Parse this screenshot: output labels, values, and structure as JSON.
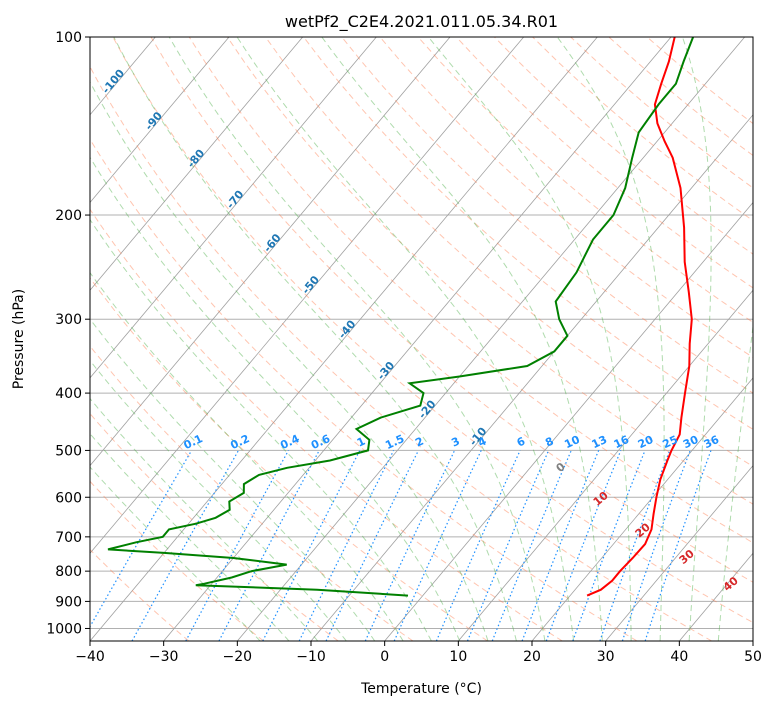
{
  "chart_data": {
    "type": "line",
    "subtype": "skew-t log-p",
    "title": "wetPf2_C2E4.2021.011.05.34.R01",
    "xlabel": "Temperature (°C)",
    "ylabel": "Pressure (hPa)",
    "xlim": [
      -40,
      50
    ],
    "ylim": [
      1050,
      100
    ],
    "y_scale": "log",
    "grid": true,
    "x_ticks": [
      -40,
      -30,
      -20,
      -10,
      0,
      10,
      20,
      30,
      40,
      50
    ],
    "x_tick_labels": [
      "−40",
      "−30",
      "−20",
      "−10",
      "0",
      "10",
      "20",
      "30",
      "40",
      "50"
    ],
    "y_ticks": [
      100,
      200,
      300,
      400,
      500,
      600,
      700,
      800,
      900,
      1000
    ],
    "y_tick_labels": [
      "100",
      "200",
      "300",
      "400",
      "500",
      "600",
      "700",
      "800",
      "900",
      "1000"
    ],
    "series": [
      {
        "color": "#ff0000",
        "points": [
          {
            "p": 880,
            "t": 22.3
          },
          {
            "p": 860,
            "t": 23.5
          },
          {
            "p": 830,
            "t": 24.0
          },
          {
            "p": 800,
            "t": 24.0
          },
          {
            "p": 760,
            "t": 24.2
          },
          {
            "p": 720,
            "t": 24.3
          },
          {
            "p": 680,
            "t": 23.5
          },
          {
            "p": 640,
            "t": 22.0
          },
          {
            "p": 600,
            "t": 20.5
          },
          {
            "p": 560,
            "t": 19.0
          },
          {
            "p": 520,
            "t": 17.8
          },
          {
            "p": 500,
            "t": 17.2
          },
          {
            "p": 470,
            "t": 16.5
          },
          {
            "p": 440,
            "t": 14.8
          },
          {
            "p": 400,
            "t": 12.5
          },
          {
            "p": 360,
            "t": 10.0
          },
          {
            "p": 330,
            "t": 7.5
          },
          {
            "p": 300,
            "t": 5.0
          },
          {
            "p": 270,
            "t": 1.5
          },
          {
            "p": 240,
            "t": -2.5
          },
          {
            "p": 210,
            "t": -6.5
          },
          {
            "p": 180,
            "t": -11.5
          },
          {
            "p": 160,
            "t": -16.0
          },
          {
            "p": 150,
            "t": -19.0
          },
          {
            "p": 140,
            "t": -22.0
          },
          {
            "p": 130,
            "t": -24.5
          },
          {
            "p": 120,
            "t": -26.0
          },
          {
            "p": 110,
            "t": -27.5
          },
          {
            "p": 100,
            "t": -29.5
          }
        ]
      },
      {
        "color": "#008000",
        "points": [
          {
            "p": 880,
            "t": -2.0
          },
          {
            "p": 860,
            "t": -15.0
          },
          {
            "p": 845,
            "t": -32.0
          },
          {
            "p": 840,
            "t": -31.0
          },
          {
            "p": 820,
            "t": -28.0
          },
          {
            "p": 800,
            "t": -26.0
          },
          {
            "p": 790,
            "t": -24.0
          },
          {
            "p": 780,
            "t": -22.0
          },
          {
            "p": 760,
            "t": -30.0
          },
          {
            "p": 745,
            "t": -40.0
          },
          {
            "p": 735,
            "t": -48.0
          },
          {
            "p": 715,
            "t": -45.0
          },
          {
            "p": 700,
            "t": -42.0
          },
          {
            "p": 680,
            "t": -42.0
          },
          {
            "p": 665,
            "t": -39.0
          },
          {
            "p": 650,
            "t": -37.0
          },
          {
            "p": 630,
            "t": -36.0
          },
          {
            "p": 610,
            "t": -37.0
          },
          {
            "p": 590,
            "t": -36.0
          },
          {
            "p": 570,
            "t": -37.0
          },
          {
            "p": 550,
            "t": -36.0
          },
          {
            "p": 535,
            "t": -33.0
          },
          {
            "p": 520,
            "t": -28.0
          },
          {
            "p": 500,
            "t": -24.0
          },
          {
            "p": 480,
            "t": -25.0
          },
          {
            "p": 460,
            "t": -28.0
          },
          {
            "p": 440,
            "t": -26.0
          },
          {
            "p": 420,
            "t": -22.0
          },
          {
            "p": 400,
            "t": -23.0
          },
          {
            "p": 385,
            "t": -26.0
          },
          {
            "p": 375,
            "t": -20.0
          },
          {
            "p": 360,
            "t": -12.0
          },
          {
            "p": 340,
            "t": -10.0
          },
          {
            "p": 320,
            "t": -10.0
          },
          {
            "p": 300,
            "t": -13.0
          },
          {
            "p": 280,
            "t": -15.5
          },
          {
            "p": 250,
            "t": -16.0
          },
          {
            "p": 220,
            "t": -17.5
          },
          {
            "p": 200,
            "t": -17.5
          },
          {
            "p": 180,
            "t": -19.0
          },
          {
            "p": 160,
            "t": -21.5
          },
          {
            "p": 145,
            "t": -23.5
          },
          {
            "p": 130,
            "t": -24.0
          },
          {
            "p": 120,
            "t": -24.0
          },
          {
            "p": 110,
            "t": -25.5
          },
          {
            "p": 100,
            "t": -27.0
          }
        ]
      }
    ],
    "isotherm_labels": [
      "-100",
      "-90",
      "-80",
      "-70",
      "-60",
      "-50",
      "-40",
      "-30",
      "-20",
      "-10"
    ],
    "mixing_ratio_labels": [
      "0.1",
      "0.2",
      "0.4",
      "0.6",
      "1",
      "1.5",
      "2",
      "3",
      "4",
      "6",
      "8",
      "10",
      "13",
      "16",
      "20",
      "25",
      "30",
      "36"
    ],
    "moist_adiabat_labels": [
      "0",
      "10",
      "20",
      "30",
      "40"
    ],
    "colors": {
      "temperature": "#ff0000",
      "dewpoint": "#008000",
      "isotherm": "#808080",
      "dry_adiabat": "#ff7f50",
      "moist_adiabat": "#4daf4a",
      "mixing_ratio": "#1e90ff",
      "isotherm_label": "#1f77b4",
      "moist_label": "#d62728"
    }
  }
}
